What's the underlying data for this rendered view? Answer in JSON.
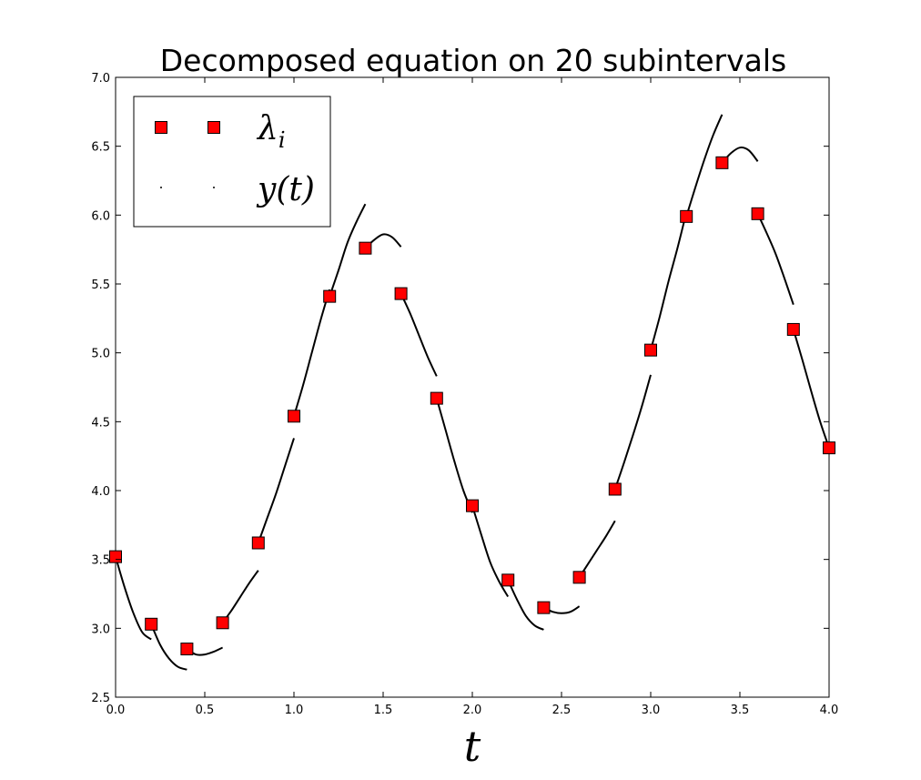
{
  "chart_data": {
    "type": "scatter",
    "title": "Decomposed equation on 20 subintervals",
    "xlabel": "t",
    "ylabel": "",
    "xlim": [
      0.0,
      4.0
    ],
    "ylim": [
      2.5,
      7.0
    ],
    "xticks": [
      "0.0",
      "0.5",
      "1.0",
      "1.5",
      "2.0",
      "2.5",
      "3.0",
      "3.5",
      "4.0"
    ],
    "yticks": [
      "2.5",
      "3.0",
      "3.5",
      "4.0",
      "4.5",
      "5.0",
      "5.5",
      "6.0",
      "6.5",
      "7.0"
    ],
    "grid": false,
    "legend_position": "top-left",
    "series": [
      {
        "name": "λ_i",
        "marker": "square",
        "color": "#ff0000",
        "x": [
          0.0,
          0.2,
          0.4,
          0.6,
          0.8,
          1.0,
          1.2,
          1.4,
          1.6,
          1.8,
          2.0,
          2.2,
          2.4,
          2.6,
          2.8,
          3.0,
          3.2,
          3.4,
          3.6,
          3.8,
          4.0
        ],
        "y": [
          3.52,
          3.03,
          2.85,
          3.04,
          3.62,
          4.54,
          5.41,
          5.76,
          5.43,
          4.67,
          3.89,
          3.35,
          3.15,
          3.37,
          4.01,
          5.02,
          5.99,
          6.38,
          6.01,
          5.17,
          4.31
        ]
      },
      {
        "name": "y(t)",
        "marker": "dot",
        "color": "#000000",
        "segments": [
          {
            "x0": 0.0,
            "x1": 0.2,
            "y": [
              3.52,
              3.3,
              3.11,
              2.97,
              2.92
            ]
          },
          {
            "x0": 0.2,
            "x1": 0.4,
            "y": [
              3.03,
              2.88,
              2.78,
              2.72,
              2.7
            ]
          },
          {
            "x0": 0.4,
            "x1": 0.6,
            "y": [
              2.85,
              2.81,
              2.81,
              2.83,
              2.86
            ]
          },
          {
            "x0": 0.6,
            "x1": 0.8,
            "y": [
              3.04,
              3.13,
              3.23,
              3.33,
              3.42
            ]
          },
          {
            "x0": 0.8,
            "x1": 1.0,
            "y": [
              3.62,
              3.8,
              3.98,
              4.18,
              4.38
            ]
          },
          {
            "x0": 1.0,
            "x1": 1.2,
            "y": [
              4.54,
              4.76,
              5.0,
              5.24,
              5.46
            ]
          },
          {
            "x0": 1.2,
            "x1": 1.4,
            "y": [
              5.41,
              5.6,
              5.8,
              5.95,
              6.08
            ]
          },
          {
            "x0": 1.4,
            "x1": 1.6,
            "y": [
              5.76,
              5.82,
              5.86,
              5.84,
              5.77
            ]
          },
          {
            "x0": 1.6,
            "x1": 1.8,
            "y": [
              5.43,
              5.29,
              5.13,
              4.97,
              4.83
            ]
          },
          {
            "x0": 1.8,
            "x1": 2.0,
            "y": [
              4.67,
              4.44,
              4.21,
              4.0,
              3.84
            ]
          },
          {
            "x0": 2.0,
            "x1": 2.2,
            "y": [
              3.89,
              3.68,
              3.48,
              3.34,
              3.23
            ]
          },
          {
            "x0": 2.2,
            "x1": 2.4,
            "y": [
              3.35,
              3.21,
              3.09,
              3.02,
              2.99
            ]
          },
          {
            "x0": 2.4,
            "x1": 2.6,
            "y": [
              3.15,
              3.12,
              3.11,
              3.12,
              3.16
            ]
          },
          {
            "x0": 2.6,
            "x1": 2.8,
            "y": [
              3.37,
              3.47,
              3.57,
              3.67,
              3.78
            ]
          },
          {
            "x0": 2.8,
            "x1": 3.0,
            "y": [
              4.01,
              4.2,
              4.4,
              4.61,
              4.84
            ]
          },
          {
            "x0": 3.0,
            "x1": 3.2,
            "y": [
              5.02,
              5.26,
              5.52,
              5.76,
              6.02
            ]
          },
          {
            "x0": 3.2,
            "x1": 3.4,
            "y": [
              5.99,
              6.2,
              6.4,
              6.58,
              6.73
            ]
          },
          {
            "x0": 3.4,
            "x1": 3.6,
            "y": [
              6.38,
              6.45,
              6.49,
              6.47,
              6.39
            ]
          },
          {
            "x0": 3.6,
            "x1": 3.8,
            "y": [
              6.01,
              5.87,
              5.72,
              5.54,
              5.35
            ]
          },
          {
            "x0": 3.8,
            "x1": 4.0,
            "y": [
              5.17,
              4.95,
              4.72,
              4.5,
              4.31
            ]
          }
        ]
      }
    ]
  }
}
